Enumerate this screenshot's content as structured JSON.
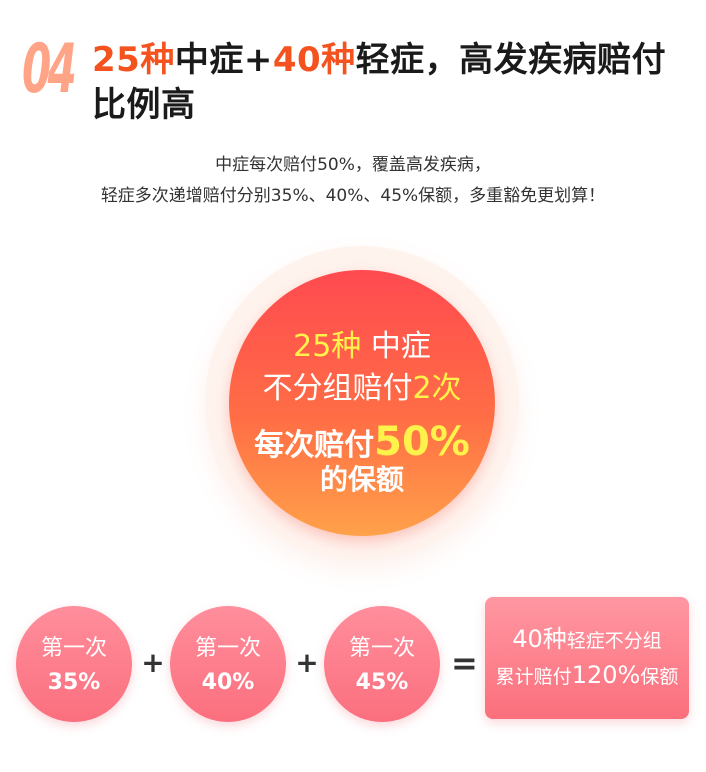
{
  "section": {
    "number": "04"
  },
  "headline": {
    "part1": "25种",
    "part2": "中症+",
    "part3": "40种",
    "part4": "轻症，高发疾病赔付比例高"
  },
  "description": {
    "line1": "中症每次赔付50%，覆盖高发疾病，",
    "line2": "轻症多次递增赔付分别35%、40%、45%保额，多重豁免更划算！"
  },
  "big_circle": {
    "line1_highlight": "25种",
    "line1_rest": " 中症",
    "line2_text": "不分组赔付",
    "line2_highlight": "2次",
    "line3_text": "每次赔付",
    "line3_highlight": "50%",
    "line4_text": "的保额"
  },
  "stages": [
    {
      "label": "第一次",
      "percent": "35%"
    },
    {
      "label": "第一次",
      "percent": "40%"
    },
    {
      "label": "第一次",
      "percent": "45%"
    }
  ],
  "operators": {
    "plus": "+",
    "equals": "="
  },
  "result": {
    "line1_big": "40种",
    "line1_small": "轻症不分组",
    "line2_small_a": "累计赔付",
    "line2_big": "120%",
    "line2_small_b": "保额"
  },
  "colors": {
    "accent_red": "#f45320",
    "number_peach": "#ffa487",
    "highlight_yellow": "#fff24a",
    "pink": "#fb6f7e"
  }
}
